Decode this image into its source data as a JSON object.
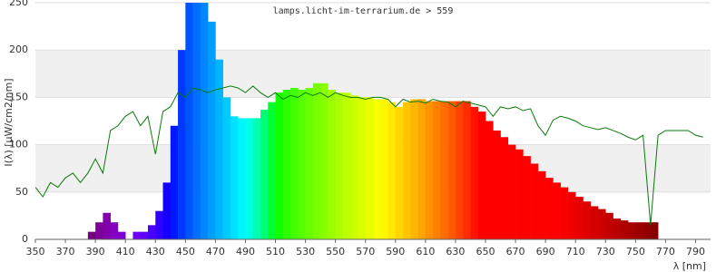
{
  "chart_data": {
    "type": "histogram",
    "title": "lamps.licht-im-terrarium.de > 559",
    "ylabel": "I(λ) [µW/cm2/nm]",
    "xlabel": "λ [nm]",
    "bins": [
      385,
      390,
      395,
      400,
      405,
      410,
      415,
      420,
      425,
      430,
      435,
      440,
      445,
      450,
      455,
      460,
      465,
      470,
      475,
      480,
      485,
      490,
      495,
      500,
      505,
      510,
      515,
      520,
      525,
      530,
      535,
      540,
      545,
      550,
      555,
      560,
      565,
      570,
      575,
      580,
      585,
      590,
      595,
      600,
      605,
      610,
      615,
      620,
      625,
      630,
      635,
      640,
      645,
      650,
      655,
      660,
      665,
      670,
      675,
      680,
      685,
      690,
      695,
      700,
      705,
      710,
      715,
      720,
      725,
      730,
      735,
      740,
      745,
      750,
      755,
      760,
      765
    ],
    "values": [
      8,
      18,
      28,
      18,
      8,
      0,
      8,
      8,
      15,
      30,
      60,
      120,
      200,
      250,
      250,
      250,
      230,
      190,
      150,
      130,
      128,
      128,
      128,
      137,
      145,
      155,
      158,
      160,
      158,
      160,
      165,
      165,
      158,
      155,
      155,
      152,
      150,
      150,
      148,
      148,
      145,
      140,
      145,
      148,
      148,
      146,
      146,
      146,
      146,
      146,
      146,
      140,
      135,
      125,
      115,
      108,
      100,
      95,
      88,
      80,
      72,
      65,
      60,
      55,
      50,
      45,
      40,
      35,
      32,
      28,
      22,
      20,
      18,
      18,
      18,
      18
    ],
    "overlay": {
      "type": "line",
      "color": "#0a7a0a",
      "x": [
        350,
        355,
        360,
        365,
        370,
        375,
        380,
        385,
        390,
        395,
        400,
        405,
        410,
        415,
        420,
        425,
        430,
        435,
        440,
        445,
        450,
        455,
        460,
        465,
        470,
        475,
        480,
        485,
        490,
        495,
        500,
        505,
        510,
        515,
        520,
        525,
        530,
        535,
        540,
        545,
        550,
        555,
        560,
        565,
        570,
        575,
        580,
        585,
        590,
        595,
        600,
        605,
        610,
        615,
        620,
        625,
        630,
        635,
        640,
        645,
        650,
        655,
        660,
        665,
        670,
        675,
        680,
        685,
        690,
        695,
        700,
        705,
        710,
        715,
        720,
        725,
        730,
        735,
        740,
        745,
        750,
        755,
        760,
        765,
        770,
        775,
        780,
        785,
        790,
        795
      ],
      "values": [
        55,
        45,
        60,
        55,
        65,
        70,
        60,
        70,
        85,
        70,
        115,
        120,
        130,
        135,
        120,
        130,
        90,
        135,
        140,
        155,
        150,
        160,
        158,
        155,
        158,
        160,
        162,
        160,
        155,
        162,
        155,
        150,
        155,
        148,
        152,
        150,
        155,
        152,
        155,
        150,
        155,
        152,
        150,
        150,
        148,
        150,
        150,
        148,
        140,
        148,
        145,
        146,
        144,
        148,
        146,
        145,
        140,
        146,
        144,
        142,
        140,
        130,
        140,
        138,
        140,
        136,
        138,
        120,
        110,
        126,
        130,
        128,
        125,
        120,
        118,
        116,
        118,
        115,
        112,
        108,
        105,
        110,
        15,
        110,
        115,
        115,
        115,
        115,
        110,
        108
      ]
    },
    "xlim": [
      350,
      800
    ],
    "ylim": [
      0,
      250
    ],
    "xticks": [
      350,
      370,
      390,
      410,
      430,
      450,
      470,
      490,
      510,
      530,
      550,
      570,
      590,
      610,
      630,
      650,
      670,
      690,
      710,
      730,
      750,
      770,
      790
    ],
    "yticks": [
      0,
      50,
      100,
      150,
      200,
      250
    ],
    "grid": true,
    "band_color": "#f0f0f0"
  }
}
